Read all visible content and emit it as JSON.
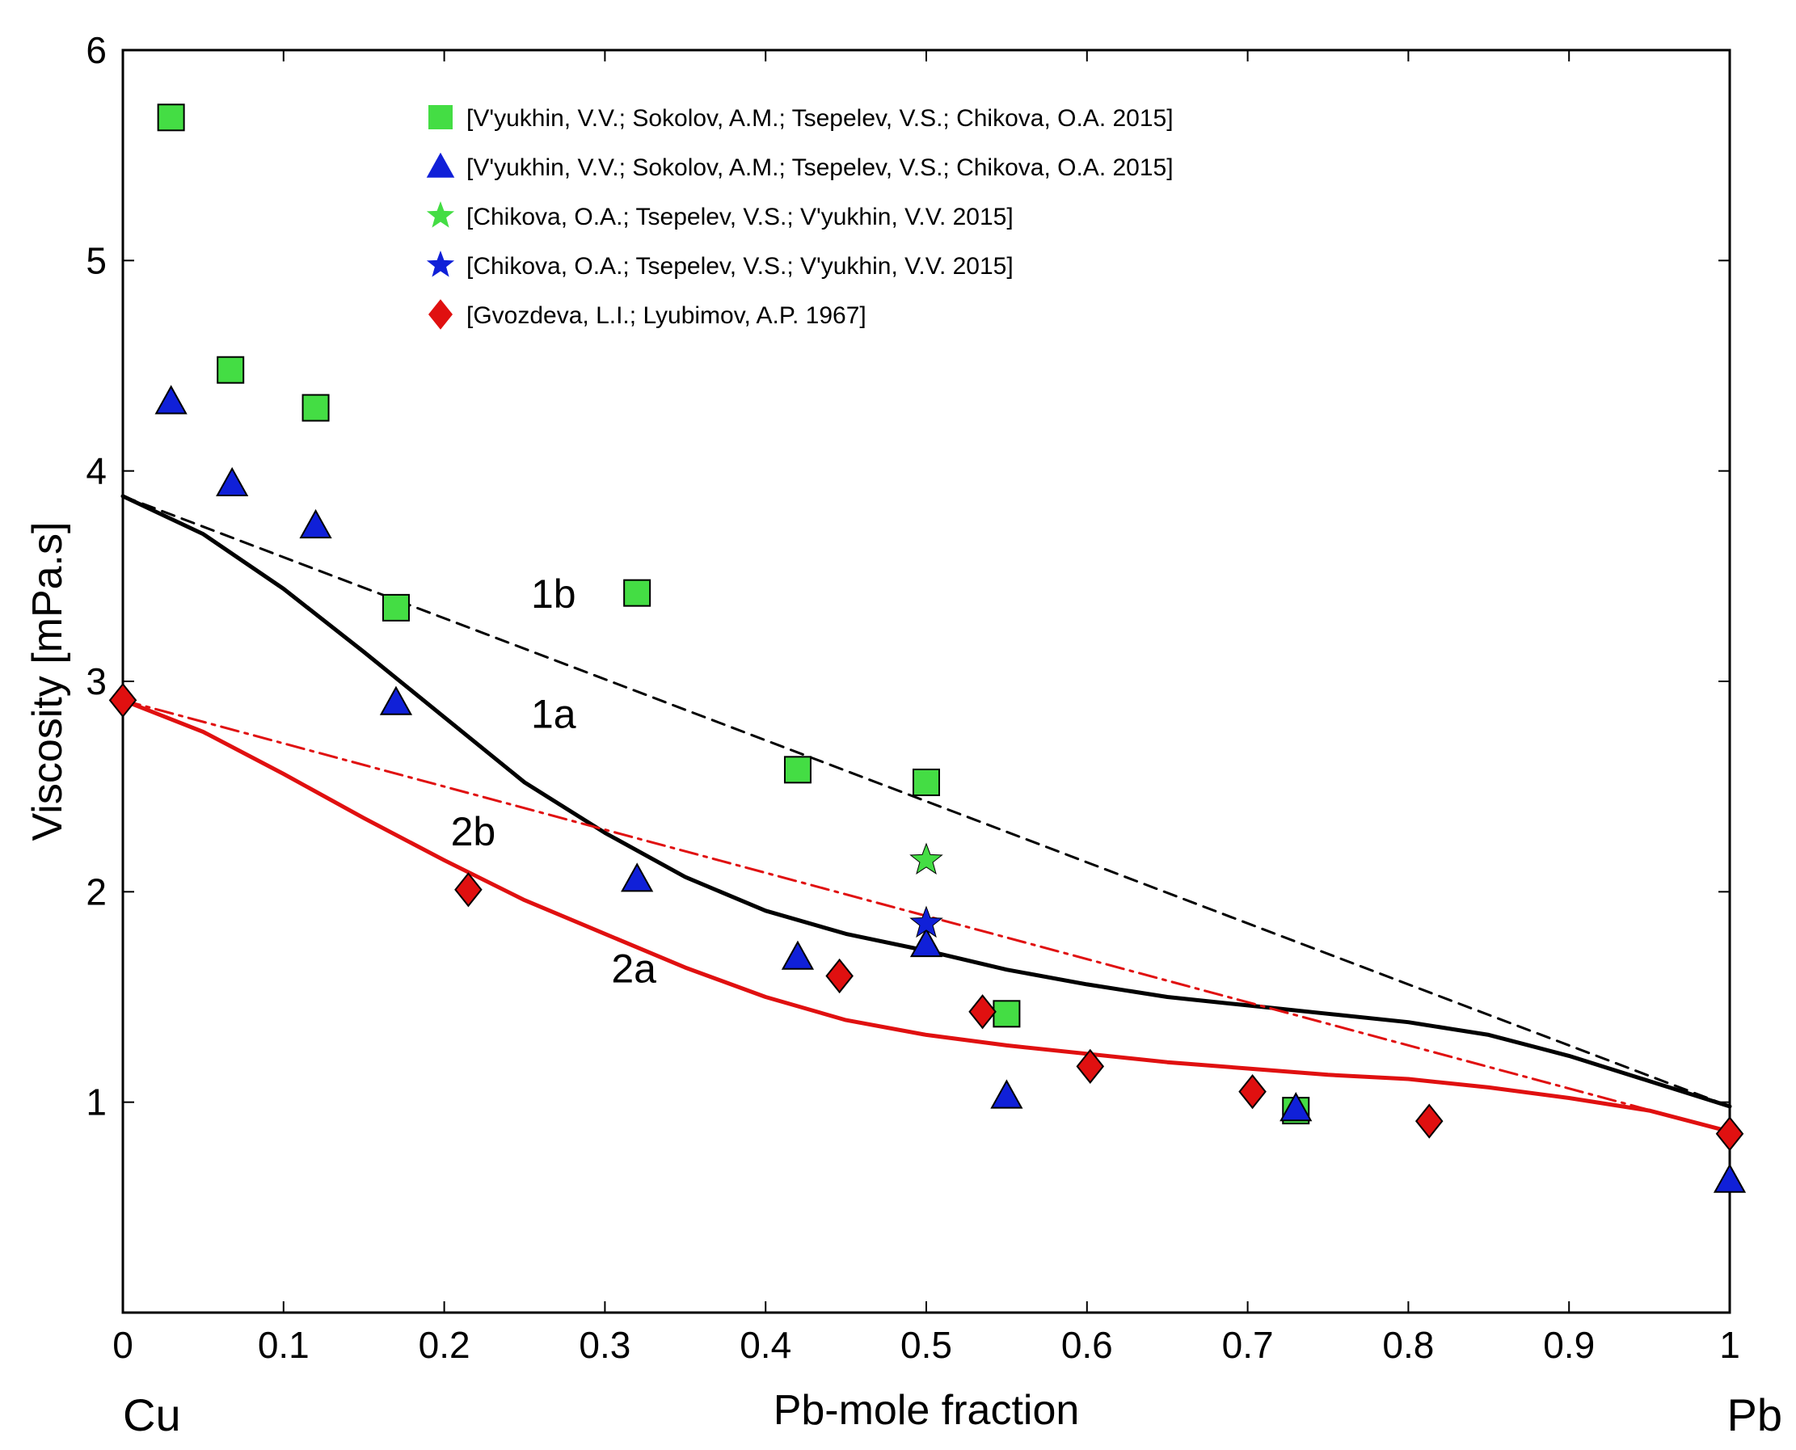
{
  "chart_data": {
    "type": "scatter",
    "xlabel": "Pb-mole fraction",
    "ylabel": "Viscosity [mPa.s]",
    "xlim": [
      0,
      1
    ],
    "ylim": [
      0,
      6
    ],
    "xticks": [
      0,
      0.1,
      0.2,
      0.3,
      0.4,
      0.5,
      0.6,
      0.7,
      0.8,
      0.9,
      1
    ],
    "xtick_labels": [
      "0",
      "0.1",
      "0.2",
      "0.3",
      "0.4",
      "0.5",
      "0.6",
      "0.7",
      "0.8",
      "0.9",
      "1"
    ],
    "yticks": [
      1,
      2,
      3,
      4,
      5,
      6
    ],
    "ytick_labels": [
      "1",
      "2",
      "3",
      "4",
      "5",
      "6"
    ],
    "end_labels": {
      "left": "Cu",
      "right": "Pb"
    },
    "grid": false,
    "legend_position": "top-left",
    "series": [
      {
        "name": "[V'yukhin, V.V.; Sokolov, A.M.; Tsepelev, V.S.; Chikova, O.A. 2015]",
        "marker": "square",
        "color": "#44dd44",
        "x": [
          0.03,
          0.067,
          0.12,
          0.17,
          0.32,
          0.42,
          0.5,
          0.55,
          0.73
        ],
        "y": [
          5.68,
          4.48,
          4.3,
          3.35,
          3.42,
          2.58,
          2.52,
          1.42,
          0.96
        ]
      },
      {
        "name": "[V'yukhin, V.V.; Sokolov, A.M.; Tsepelev, V.S.; Chikova, O.A. 2015]",
        "marker": "triangle",
        "color": "#1020d8",
        "x": [
          0.03,
          0.068,
          0.12,
          0.17,
          0.32,
          0.42,
          0.5,
          0.55,
          0.73,
          1.0
        ],
        "y": [
          4.33,
          3.94,
          3.74,
          2.9,
          2.06,
          1.69,
          1.75,
          1.03,
          0.97,
          0.63
        ]
      },
      {
        "name": "[Chikova, O.A.; Tsepelev, V.S.; V'yukhin, V.V. 2015]",
        "marker": "star",
        "color": "#44dd44",
        "x": [
          0.5
        ],
        "y": [
          2.15
        ]
      },
      {
        "name": "[Chikova, O.A.; Tsepelev, V.S.; V'yukhin, V.V. 2015]",
        "marker": "star",
        "color": "#1020d8",
        "x": [
          0.5
        ],
        "y": [
          1.85
        ]
      },
      {
        "name": "[Gvozdeva, L.I.; Lyubimov, A.P. 1967]",
        "marker": "diamond",
        "color": "#e01010",
        "x": [
          0.0,
          0.215,
          0.446,
          0.535,
          0.602,
          0.703,
          0.813,
          1.0
        ],
        "y": [
          2.91,
          2.01,
          1.6,
          1.43,
          1.17,
          1.05,
          0.91,
          0.85
        ]
      }
    ],
    "curves": [
      {
        "label": "1a",
        "style": "solid",
        "color": "#000000",
        "x": [
          0,
          0.05,
          0.1,
          0.15,
          0.2,
          0.25,
          0.3,
          0.35,
          0.4,
          0.45,
          0.5,
          0.55,
          0.6,
          0.65,
          0.7,
          0.75,
          0.8,
          0.85,
          0.9,
          0.95,
          1.0
        ],
        "y": [
          3.88,
          3.7,
          3.44,
          3.14,
          2.83,
          2.52,
          2.28,
          2.07,
          1.91,
          1.8,
          1.72,
          1.63,
          1.56,
          1.5,
          1.46,
          1.42,
          1.38,
          1.32,
          1.22,
          1.1,
          0.98
        ],
        "label_pos": [
          0.268,
          2.78
        ]
      },
      {
        "label": "1b",
        "style": "dashed",
        "color": "#000000",
        "x": [
          0,
          1.0
        ],
        "y": [
          3.88,
          0.98
        ],
        "label_pos": [
          0.268,
          3.35
        ]
      },
      {
        "label": "2a",
        "style": "solid",
        "color": "#e01010",
        "x": [
          0,
          0.05,
          0.1,
          0.15,
          0.2,
          0.25,
          0.3,
          0.35,
          0.4,
          0.45,
          0.5,
          0.55,
          0.6,
          0.65,
          0.7,
          0.75,
          0.8,
          0.85,
          0.9,
          0.95,
          1.0
        ],
        "y": [
          2.91,
          2.76,
          2.56,
          2.35,
          2.15,
          1.96,
          1.8,
          1.64,
          1.5,
          1.39,
          1.32,
          1.27,
          1.23,
          1.19,
          1.16,
          1.13,
          1.11,
          1.07,
          1.02,
          0.96,
          0.86
        ],
        "label_pos": [
          0.318,
          1.57
        ]
      },
      {
        "label": "2b",
        "style": "dashdot",
        "color": "#e01010",
        "x": [
          0,
          1.0
        ],
        "y": [
          2.91,
          0.86
        ],
        "label_pos": [
          0.218,
          2.22
        ]
      }
    ]
  }
}
